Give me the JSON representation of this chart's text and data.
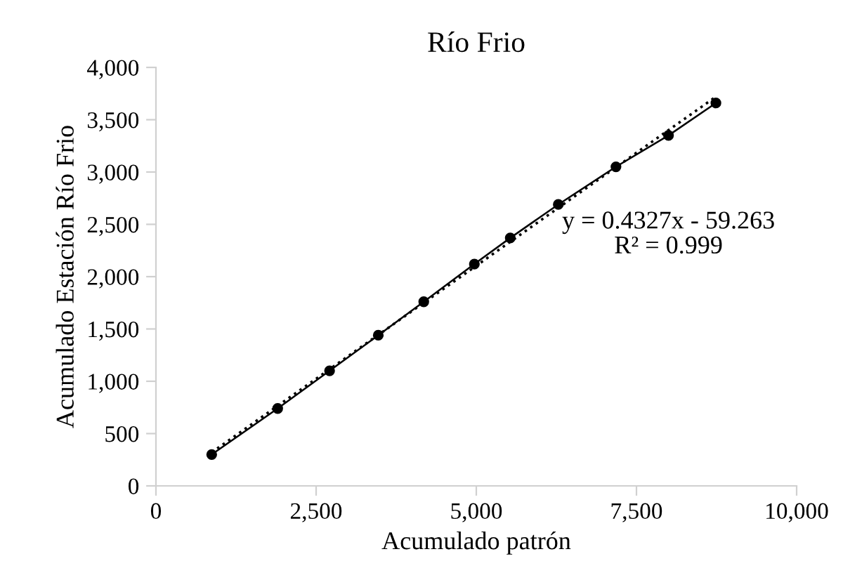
{
  "chart_data": {
    "type": "line",
    "title": "Río Frio",
    "xlabel": "Acumulado patrón",
    "ylabel": "Acumulado Estación Río Frio",
    "xlim": [
      0,
      10000
    ],
    "xticks": [
      {
        "value": 0,
        "label": "0"
      },
      {
        "value": 2500,
        "label": "2,500"
      },
      {
        "value": 5000,
        "label": "5,000"
      },
      {
        "value": 7500,
        "label": "7,500"
      },
      {
        "value": 10000,
        "label": "10,000"
      }
    ],
    "ylim": [
      0,
      4000
    ],
    "yticks": [
      {
        "value": 0,
        "label": "0"
      },
      {
        "value": 500,
        "label": "500"
      },
      {
        "value": 1000,
        "label": "1,000"
      },
      {
        "value": 1500,
        "label": "1,500"
      },
      {
        "value": 2000,
        "label": "2,000"
      },
      {
        "value": 2500,
        "label": "2,500"
      },
      {
        "value": 3000,
        "label": "3,000"
      },
      {
        "value": 3500,
        "label": "3,500"
      },
      {
        "value": 4000,
        "label": "4,000"
      }
    ],
    "grid": false,
    "legend": false,
    "series": [
      {
        "color": "#000000",
        "marker": "circle",
        "line_style": "solid",
        "x": [
          870,
          1900,
          2710,
          3470,
          4180,
          4970,
          5530,
          6280,
          7180,
          8000,
          8740
        ],
        "values": [
          300,
          740,
          1100,
          1440,
          1760,
          2120,
          2370,
          2690,
          3050,
          3350,
          3660
        ]
      },
      {
        "color": "#000000",
        "marker": "none",
        "line_style": "dotted",
        "x": [
          870,
          8740
        ],
        "values": [
          320,
          3720
        ]
      }
    ],
    "annotations": [
      "y = 0.4327x - 59.263\nR² = 0.999"
    ]
  }
}
